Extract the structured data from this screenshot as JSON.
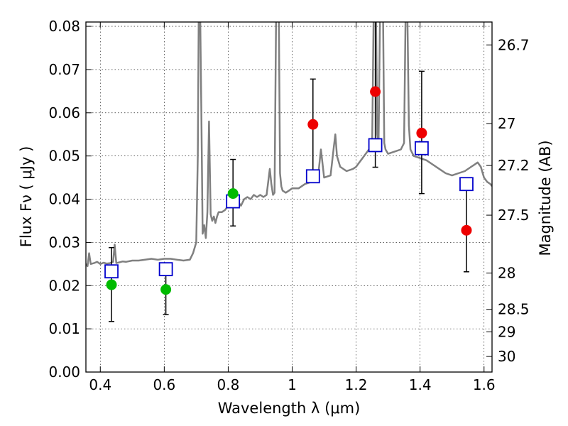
{
  "chart_data": {
    "type": "scatter",
    "title": "",
    "xlabel": "Wavelength  λ (μm)",
    "ylabel": "Flux  Fν  ( μJy )",
    "ylabel_right": "Magnitude (AB)",
    "xlim": [
      0.355,
      1.625
    ],
    "ylim": [
      0.0,
      0.081
    ],
    "grid": true,
    "x_ticks": [
      0.4,
      0.6,
      0.8,
      1.0,
      1.2,
      1.4,
      1.6
    ],
    "x_tick_labels": [
      "0.4",
      "0.6",
      "0.8",
      "1",
      "1.2",
      "1.4",
      "1.6"
    ],
    "y_ticks": [
      0.0,
      0.01,
      0.02,
      0.03,
      0.04,
      0.05,
      0.06,
      0.07,
      0.08
    ],
    "y_tick_labels": [
      "0.00",
      "0.01",
      "0.02",
      "0.03",
      "0.04",
      "0.05",
      "0.06",
      "0.07",
      "0.08"
    ],
    "right_ticks": [
      {
        "label": "26.7",
        "flux": 0.0757
      },
      {
        "label": "27",
        "flux": 0.0575
      },
      {
        "label": "27.2",
        "flux": 0.0478
      },
      {
        "label": "27.5",
        "flux": 0.0363
      },
      {
        "label": "28",
        "flux": 0.0229
      },
      {
        "label": "28.5",
        "flux": 0.0145
      },
      {
        "label": "29",
        "flux": 0.0093
      },
      {
        "label": "30",
        "flux": 0.0036
      }
    ],
    "colors": {
      "spectrum": "#808080",
      "model_squares": "#0000cc",
      "green_points": "#00bb00",
      "red_points": "#ee0000",
      "errorbars": "#000000"
    },
    "series": [
      {
        "marker": "line",
        "x": [
          0.355,
          0.36,
          0.365,
          0.37,
          0.38,
          0.39,
          0.4,
          0.41,
          0.42,
          0.43,
          0.44,
          0.445,
          0.45,
          0.46,
          0.47,
          0.48,
          0.5,
          0.52,
          0.54,
          0.56,
          0.58,
          0.6,
          0.62,
          0.64,
          0.66,
          0.68,
          0.69,
          0.7,
          0.705,
          0.708,
          0.712,
          0.716,
          0.72,
          0.725,
          0.73,
          0.735,
          0.74,
          0.745,
          0.75,
          0.755,
          0.76,
          0.765,
          0.77,
          0.78,
          0.79,
          0.8,
          0.81,
          0.82,
          0.83,
          0.84,
          0.85,
          0.86,
          0.87,
          0.88,
          0.89,
          0.9,
          0.91,
          0.92,
          0.93,
          0.935,
          0.94,
          0.945,
          0.95,
          0.955,
          0.958,
          0.962,
          0.966,
          0.97,
          0.98,
          0.99,
          1.0,
          1.02,
          1.04,
          1.06,
          1.08,
          1.09,
          1.1,
          1.12,
          1.13,
          1.135,
          1.14,
          1.15,
          1.17,
          1.19,
          1.2,
          1.21,
          1.22,
          1.23,
          1.24,
          1.25,
          1.255,
          1.258,
          1.262,
          1.266,
          1.27,
          1.275,
          1.28,
          1.284,
          1.288,
          1.292,
          1.3,
          1.32,
          1.34,
          1.35,
          1.355,
          1.36,
          1.365,
          1.37,
          1.38,
          1.4,
          1.42,
          1.44,
          1.46,
          1.48,
          1.5,
          1.52,
          1.54,
          1.56,
          1.57,
          1.58,
          1.59,
          1.6,
          1.61,
          1.62,
          1.625
        ],
        "y": [
          0.025,
          0.0245,
          0.0275,
          0.025,
          0.0252,
          0.0255,
          0.025,
          0.0253,
          0.0251,
          0.0252,
          0.0255,
          0.0295,
          0.0252,
          0.0254,
          0.0256,
          0.0255,
          0.0258,
          0.0258,
          0.026,
          0.0262,
          0.026,
          0.0262,
          0.0262,
          0.026,
          0.0258,
          0.026,
          0.0275,
          0.03,
          0.05,
          0.085,
          0.085,
          0.06,
          0.032,
          0.034,
          0.031,
          0.037,
          0.058,
          0.0365,
          0.035,
          0.036,
          0.0345,
          0.036,
          0.037,
          0.037,
          0.0375,
          0.0385,
          0.04,
          0.0405,
          0.0395,
          0.0385,
          0.04,
          0.0405,
          0.04,
          0.041,
          0.0405,
          0.041,
          0.0405,
          0.041,
          0.047,
          0.0435,
          0.041,
          0.0415,
          0.085,
          0.085,
          0.085,
          0.046,
          0.043,
          0.042,
          0.0415,
          0.042,
          0.0425,
          0.0425,
          0.0435,
          0.044,
          0.0445,
          0.0515,
          0.045,
          0.0455,
          0.052,
          0.055,
          0.05,
          0.0475,
          0.0465,
          0.047,
          0.0475,
          0.0485,
          0.0495,
          0.0505,
          0.0515,
          0.052,
          0.085,
          0.085,
          0.085,
          0.055,
          0.052,
          0.085,
          0.085,
          0.085,
          0.053,
          0.0515,
          0.0505,
          0.051,
          0.0515,
          0.053,
          0.085,
          0.085,
          0.057,
          0.0515,
          0.05,
          0.0495,
          0.049,
          0.048,
          0.047,
          0.046,
          0.0455,
          0.046,
          0.0465,
          0.0475,
          0.048,
          0.0485,
          0.0475,
          0.045,
          0.044,
          0.0435,
          0.043
        ]
      },
      {
        "marker": "square",
        "x": [
          0.435,
          0.605,
          0.815,
          1.065,
          1.26,
          1.405,
          1.545
        ],
        "y": [
          0.0233,
          0.0238,
          0.0395,
          0.0453,
          0.0525,
          0.0518,
          0.0435
        ]
      },
      {
        "marker": "circle-green",
        "x": [
          0.435,
          0.605,
          0.815
        ],
        "y": [
          0.0202,
          0.0191,
          0.0413
        ],
        "yerr_low": [
          0.0117,
          0.0133,
          0.0338
        ],
        "yerr_high": [
          0.0288,
          0.025,
          0.0492
        ]
      },
      {
        "marker": "circle-red",
        "x": [
          1.065,
          1.26,
          1.405,
          1.545
        ],
        "y": [
          0.0573,
          0.0649,
          0.0553,
          0.0328
        ],
        "yerr_low": [
          0.0449,
          0.0474,
          0.0413,
          0.0232
        ],
        "yerr_high": [
          0.0678,
          0.085,
          0.0696,
          0.0424
        ]
      }
    ]
  }
}
